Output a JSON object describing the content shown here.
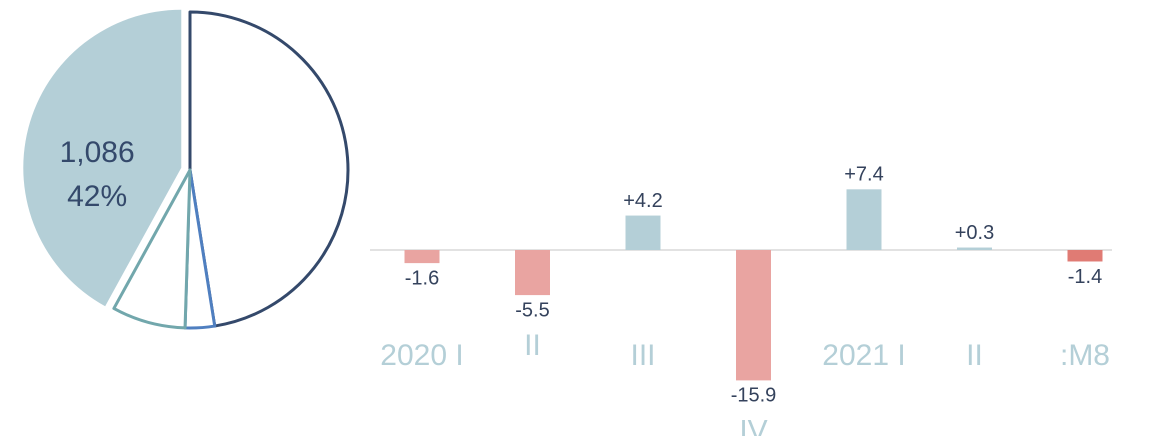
{
  "chart_data": [
    {
      "type": "pie",
      "values": [
        47.5,
        3,
        7.5,
        42
      ],
      "value_labels": [
        null,
        null,
        null,
        "42%"
      ],
      "amount_labels": [
        null,
        null,
        null,
        "1,086"
      ],
      "colors": [
        "#34496b",
        "#4f7fc0",
        "#72a7ac",
        "#b4cfd7"
      ],
      "filled": [
        false,
        false,
        false,
        true
      ],
      "exploded": [
        false,
        false,
        false,
        true
      ]
    },
    {
      "type": "bar",
      "categories": [
        "2020 I",
        "II",
        "III",
        "IV",
        "2021 I",
        "II",
        ":M8"
      ],
      "values": [
        -1.6,
        -5.5,
        4.2,
        -15.9,
        7.4,
        0.3,
        -1.4
      ],
      "value_labels": [
        "-1.6",
        "-5.5",
        "+4.2",
        "-15.9",
        "+7.4",
        "+0.3",
        "-1.4"
      ],
      "colors": [
        "#e9a4a1",
        "#e9a4a1",
        "#b4cfd7",
        "#e9a4a1",
        "#b4cfd7",
        "#b4cfd7",
        "#e07b74"
      ],
      "ylim": [
        -20,
        10
      ]
    }
  ]
}
